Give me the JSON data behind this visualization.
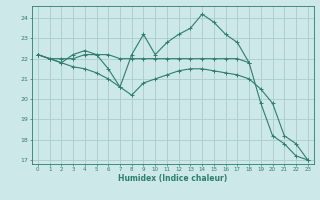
{
  "xlabel": "Humidex (Indice chaleur)",
  "background_color": "#cce8e8",
  "grid_color": "#aacccc",
  "line_color": "#2e7d6e",
  "xlim": [
    -0.5,
    23.5
  ],
  "ylim": [
    16.8,
    24.6
  ],
  "yticks": [
    17,
    18,
    19,
    20,
    21,
    22,
    23,
    24
  ],
  "xticks": [
    0,
    1,
    2,
    3,
    4,
    5,
    6,
    7,
    8,
    9,
    10,
    11,
    12,
    13,
    14,
    15,
    16,
    17,
    18,
    19,
    20,
    21,
    22,
    23
  ],
  "series": [
    {
      "x": [
        0,
        1,
        2,
        3,
        4,
        5,
        6,
        7,
        8,
        9,
        10,
        11,
        12,
        13,
        14,
        15,
        16,
        17,
        18
      ],
      "y": [
        22.2,
        22.0,
        22.0,
        22.0,
        22.2,
        22.2,
        22.2,
        22.0,
        22.0,
        22.0,
        22.0,
        22.0,
        22.0,
        22.0,
        22.0,
        22.0,
        22.0,
        22.0,
        21.8
      ]
    },
    {
      "x": [
        0,
        1,
        2,
        3,
        4,
        5,
        6,
        7,
        8,
        9,
        10,
        11,
        12,
        13,
        14,
        15,
        16,
        17,
        18,
        19,
        20,
        21,
        22,
        23
      ],
      "y": [
        22.2,
        22.0,
        21.8,
        22.2,
        22.4,
        22.2,
        21.5,
        20.6,
        22.2,
        23.2,
        22.2,
        22.8,
        23.2,
        23.5,
        24.2,
        23.8,
        23.2,
        22.8,
        21.8,
        19.8,
        18.2,
        17.8,
        17.2,
        17.0
      ]
    },
    {
      "x": [
        0,
        1,
        2,
        3,
        4,
        5,
        6,
        7,
        8,
        9,
        10,
        11,
        12,
        13,
        14,
        15,
        16,
        17,
        18,
        19,
        20,
        21,
        22,
        23
      ],
      "y": [
        22.2,
        22.0,
        21.8,
        21.6,
        21.5,
        21.3,
        21.0,
        20.6,
        20.2,
        20.8,
        21.0,
        21.2,
        21.4,
        21.5,
        21.5,
        21.4,
        21.3,
        21.2,
        21.0,
        20.5,
        19.8,
        18.2,
        17.8,
        17.0
      ]
    }
  ]
}
